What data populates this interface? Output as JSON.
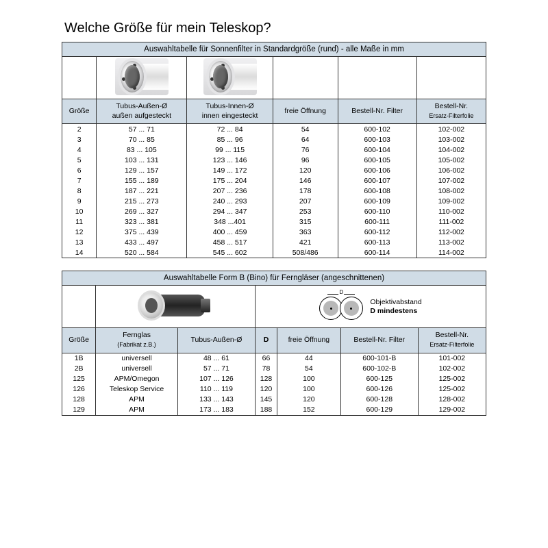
{
  "title": "Welche Größe für mein Teleskop?",
  "table1": {
    "section": "Auswahltabelle für Sonnenfilter in Standardgröße (rund) - alle Maße in mm",
    "headers": {
      "size": "Größe",
      "outer": "Tubus-Außen-Ø",
      "outer_sub": "außen aufgesteckt",
      "inner": "Tubus-Innen-Ø",
      "inner_sub": "innen eingesteckt",
      "opening": "freie Öffnung",
      "order_filter": "Bestell-Nr. Filter",
      "order_foil": "Bestell-Nr.",
      "order_foil_sub": "Ersatz-Filterfolie"
    },
    "rows": [
      {
        "s": "2",
        "o": "57 ... 71",
        "i": "72 ... 84",
        "op": "54",
        "f": "600-102",
        "ff": "102-002"
      },
      {
        "s": "3",
        "o": "70 ... 85",
        "i": "85 ... 96",
        "op": "64",
        "f": "600-103",
        "ff": "103-002"
      },
      {
        "s": "4",
        "o": "83 ... 105",
        "i": "99 ... 115",
        "op": "76",
        "f": "600-104",
        "ff": "104-002"
      },
      {
        "s": "5",
        "o": "103 ... 131",
        "i": "123 ... 146",
        "op": "96",
        "f": "600-105",
        "ff": "105-002"
      },
      {
        "s": "6",
        "o": "129 ... 157",
        "i": "149 ... 172",
        "op": "120",
        "f": "600-106",
        "ff": "106-002"
      },
      {
        "s": "7",
        "o": "155 ... 189",
        "i": "175 ... 204",
        "op": "146",
        "f": "600-107",
        "ff": "107-002"
      },
      {
        "s": "8",
        "o": "187 ... 221",
        "i": "207 ... 236",
        "op": "178",
        "f": "600-108",
        "ff": "108-002"
      },
      {
        "s": "9",
        "o": "215 ... 273",
        "i": "240 ... 293",
        "op": "207",
        "f": "600-109",
        "ff": "109-002"
      },
      {
        "s": "10",
        "o": "269 ... 327",
        "i": "294 ... 347",
        "op": "253",
        "f": "600-110",
        "ff": "110-002"
      },
      {
        "s": "11",
        "o": "323 ... 381",
        "i": "348 ...401",
        "op": "315",
        "f": "600-111",
        "ff": "111-002"
      },
      {
        "s": "12",
        "o": "375 ... 439",
        "i": "400 ... 459",
        "op": "363",
        "f": "600-112",
        "ff": "112-002"
      },
      {
        "s": "13",
        "o": "433 ... 497",
        "i": "458 ... 517",
        "op": "421",
        "f": "600-113",
        "ff": "113-002"
      },
      {
        "s": "14",
        "o": "520 ... 584",
        "i": "545 ... 602",
        "op": "508/486",
        "f": "600-114",
        "ff": "114-002"
      }
    ]
  },
  "table2": {
    "section": "Auswahltabelle Form B (Bino) für Ferngläser  (angeschnittenen)",
    "obj_label1": "Objektivabstand",
    "obj_label2": "D mindestens",
    "headers": {
      "size": "Größe",
      "fernglas": "Fernglas",
      "fernglas_sub": "(Fabrikat z.B.)",
      "outer": "Tubus-Außen-Ø",
      "d": "D",
      "opening": "freie Öffnung",
      "order_filter": "Bestell-Nr. Filter",
      "order_foil": "Bestell-Nr.",
      "order_foil_sub": "Ersatz-Filterfolie"
    },
    "rows": [
      {
        "s": "1B",
        "fg": "universell",
        "o": "48 ... 61",
        "d": "66",
        "op": "44",
        "f": "600-101-B",
        "ff": "101-002"
      },
      {
        "s": "2B",
        "fg": "universell",
        "o": "57 ... 71",
        "d": "78",
        "op": "54",
        "f": "600-102-B",
        "ff": "102-002"
      },
      {
        "s": "125",
        "fg": "APM/Omegon",
        "o": "107 ... 126",
        "d": "128",
        "op": "100",
        "f": "600-125",
        "ff": "125-002"
      },
      {
        "s": "126",
        "fg": "Teleskop Service",
        "o": "110 ... 119",
        "d": "120",
        "op": "100",
        "f": "600-126",
        "ff": "125-002"
      },
      {
        "s": "128",
        "fg": "APM",
        "o": "133 ... 143",
        "d": "145",
        "op": "120",
        "f": "600-128",
        "ff": "128-002"
      },
      {
        "s": "129",
        "fg": "APM",
        "o": "173 ... 183",
        "d": "188",
        "op": "152",
        "f": "600-129",
        "ff": "129-002"
      }
    ]
  },
  "colors": {
    "header_bg": "#d0dce6",
    "border": "#333333"
  }
}
